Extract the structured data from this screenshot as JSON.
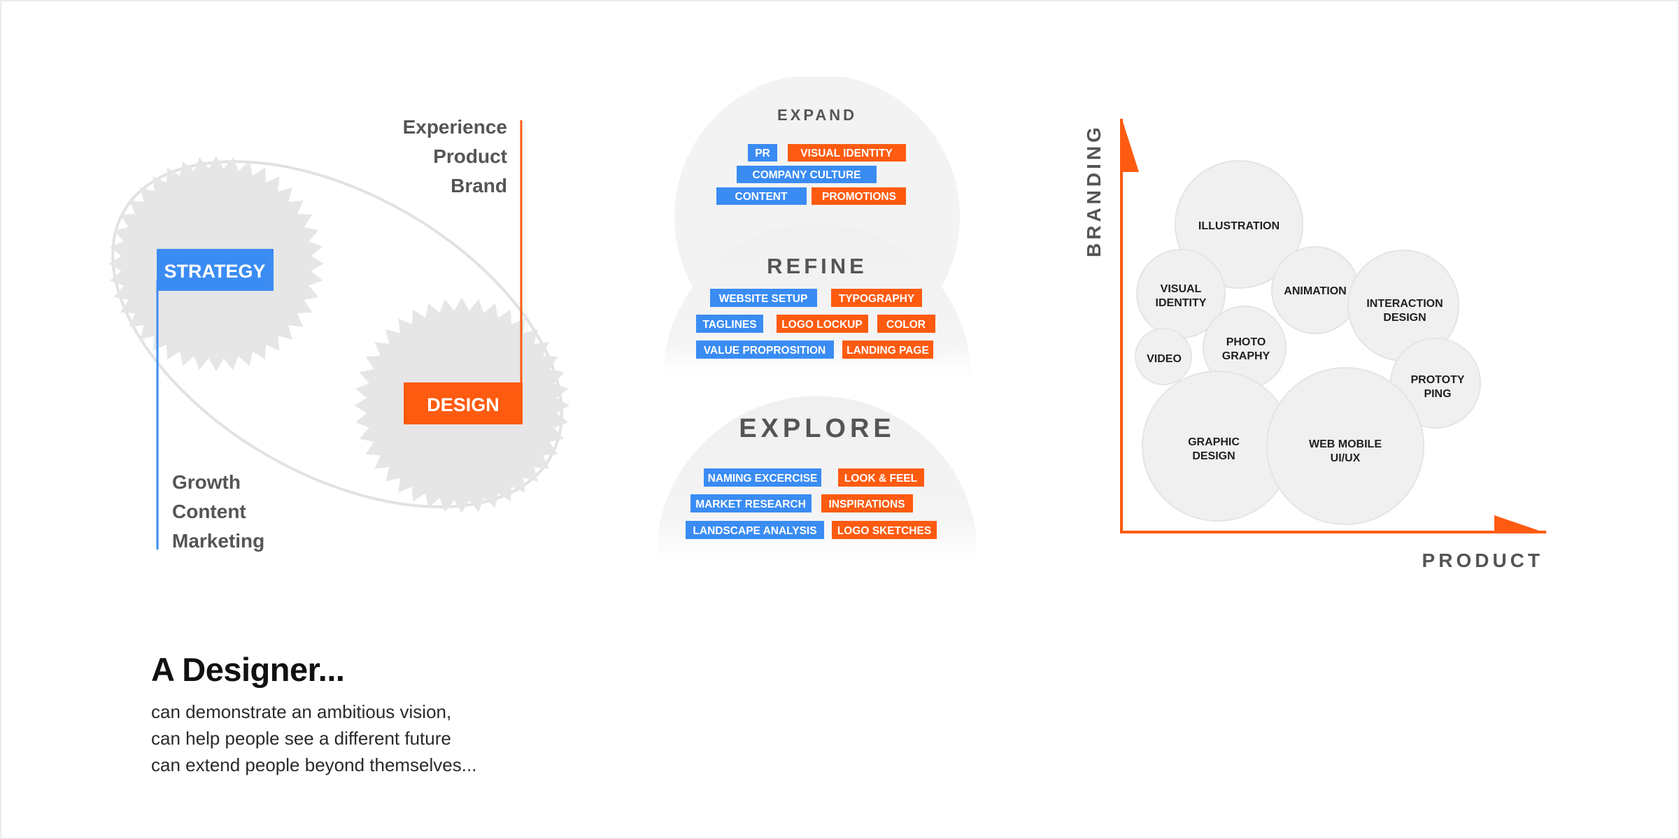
{
  "colors": {
    "accent_orange": "#fe5b10",
    "accent_blue": "#3a8cf3",
    "gear_gray": "#e6e6e6",
    "text_gray": "#555555",
    "bubble_gray": "#f0f0f0"
  },
  "strategy_design": {
    "top_list": [
      "Experience",
      "Product",
      "Brand"
    ],
    "strategy_label": "STRATEGY",
    "design_label": "DESIGN",
    "bottom_list": [
      "Growth",
      "Content",
      "Marketing"
    ]
  },
  "phases": [
    {
      "title": "EXPAND",
      "rows": [
        [
          {
            "label": "PR",
            "color": "blue"
          },
          {
            "label": "VISUAL IDENTITY",
            "color": "orange"
          }
        ],
        [
          {
            "label": "COMPANY CULTURE",
            "color": "blue"
          }
        ],
        [
          {
            "label": "CONTENT",
            "color": "blue"
          },
          {
            "label": "PROMOTIONS",
            "color": "orange"
          }
        ]
      ]
    },
    {
      "title": "REFINE",
      "rows": [
        [
          {
            "label": "WEBSITE SETUP",
            "color": "blue"
          },
          {
            "label": "TYPOGRAPHY",
            "color": "orange"
          }
        ],
        [
          {
            "label": "TAGLINES",
            "color": "blue"
          },
          {
            "label": "LOGO LOCKUP",
            "color": "orange"
          },
          {
            "label": "COLOR",
            "color": "orange"
          }
        ],
        [
          {
            "label": "VALUE PROPROSITION",
            "color": "blue"
          },
          {
            "label": "LANDING PAGE",
            "color": "orange"
          }
        ]
      ]
    },
    {
      "title": "EXPLORE",
      "rows": [
        [
          {
            "label": "NAMING EXCERCISE",
            "color": "blue"
          },
          {
            "label": "LOOK & FEEL",
            "color": "orange"
          }
        ],
        [
          {
            "label": "MARKET RESEARCH",
            "color": "blue"
          },
          {
            "label": "INSPIRATIONS",
            "color": "orange"
          }
        ],
        [
          {
            "label": "LANDSCAPE ANALYSIS",
            "color": "blue"
          },
          {
            "label": "LOGO SKETCHES",
            "color": "orange"
          }
        ]
      ]
    }
  ],
  "skills_map": {
    "y_axis_label": "BRANDING",
    "x_axis_label": "PRODUCT",
    "bubbles": [
      {
        "lines": [
          "ILLUSTRATION"
        ]
      },
      {
        "lines": [
          "VISUAL",
          "IDENTITY"
        ]
      },
      {
        "lines": [
          "ANIMATION"
        ]
      },
      {
        "lines": [
          "INTERACTION",
          "DESIGN"
        ]
      },
      {
        "lines": [
          "VIDEO"
        ]
      },
      {
        "lines": [
          "PHOTO",
          "GRAPHY"
        ]
      },
      {
        "lines": [
          "PROTOTY",
          "PING"
        ]
      },
      {
        "lines": [
          "GRAPHIC",
          "DESIGN"
        ]
      },
      {
        "lines": [
          "WEB MOBILE",
          "UI/UX"
        ]
      }
    ]
  },
  "caption": {
    "title": "A Designer...",
    "lines": [
      "can demonstrate an ambitious vision,",
      "can help people see a different future",
      "can extend people beyond themselves..."
    ]
  }
}
